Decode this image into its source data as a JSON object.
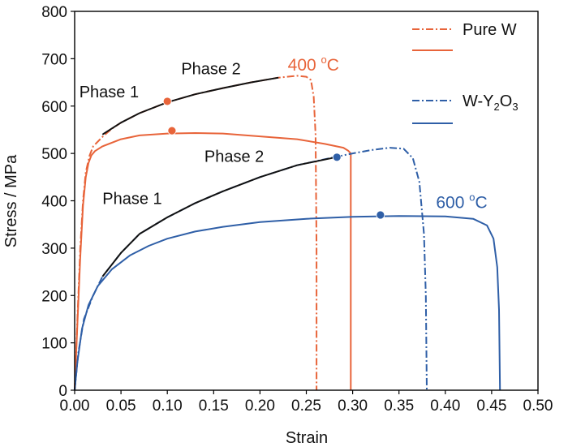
{
  "chart_data": {
    "type": "line",
    "xlabel": "Strain",
    "ylabel": "Stress / MPa",
    "xlim": [
      0.0,
      0.5
    ],
    "ylim": [
      0,
      800
    ],
    "x_ticks": [
      "0.00",
      "0.05",
      "0.10",
      "0.15",
      "0.20",
      "0.25",
      "0.30",
      "0.35",
      "0.40",
      "0.45",
      "0.50"
    ],
    "y_ticks": [
      "0",
      "100",
      "200",
      "300",
      "400",
      "500",
      "600",
      "700",
      "800"
    ],
    "grid": false,
    "legend_position": "top-right",
    "colors": {
      "pure_w": "#e8643a",
      "w_y2o3": "#2f5fa7",
      "phase_line": "#111111"
    },
    "legend": [
      {
        "label": "Pure W",
        "style": "dashdot",
        "color": "#e8643a"
      },
      {
        "label": "",
        "style": "solid",
        "color": "#e8643a"
      },
      {
        "label_main": "W-Y",
        "sub1": "2",
        "mid": "O",
        "sub2": "3",
        "style": "dashdot",
        "color": "#2f5fa7"
      },
      {
        "label": "",
        "style": "solid",
        "color": "#2f5fa7"
      }
    ],
    "series": [
      {
        "color": "#e8643a",
        "style": "dashdot",
        "points": [
          [
            0,
            0
          ],
          [
            0.003,
            150
          ],
          [
            0.006,
            300
          ],
          [
            0.009,
            400
          ],
          [
            0.012,
            460
          ],
          [
            0.016,
            495
          ],
          [
            0.02,
            515
          ],
          [
            0.03,
            535
          ],
          [
            0.04,
            552
          ],
          [
            0.05,
            565
          ],
          [
            0.07,
            585
          ],
          [
            0.1,
            608
          ],
          [
            0.13,
            625
          ],
          [
            0.16,
            638
          ],
          [
            0.19,
            650
          ],
          [
            0.22,
            660
          ],
          [
            0.24,
            664
          ],
          [
            0.25,
            662
          ],
          [
            0.255,
            655
          ],
          [
            0.258,
            620
          ],
          [
            0.26,
            540
          ],
          [
            0.261,
            300
          ],
          [
            0.261,
            0
          ]
        ]
      },
      {
        "color": "#e8643a",
        "style": "solid",
        "points": [
          [
            0,
            0
          ],
          [
            0.003,
            140
          ],
          [
            0.006,
            280
          ],
          [
            0.009,
            390
          ],
          [
            0.012,
            450
          ],
          [
            0.015,
            480
          ],
          [
            0.018,
            496
          ],
          [
            0.022,
            505
          ],
          [
            0.03,
            515
          ],
          [
            0.05,
            530
          ],
          [
            0.07,
            538
          ],
          [
            0.1,
            542
          ],
          [
            0.13,
            543
          ],
          [
            0.16,
            542
          ],
          [
            0.2,
            536
          ],
          [
            0.24,
            530
          ],
          [
            0.27,
            520
          ],
          [
            0.29,
            512
          ],
          [
            0.295,
            506
          ],
          [
            0.298,
            500
          ],
          [
            0.298,
            0
          ]
        ]
      },
      {
        "color": "#2f5fa7",
        "style": "dashdot",
        "points": [
          [
            0,
            0
          ],
          [
            0.004,
            80
          ],
          [
            0.01,
            150
          ],
          [
            0.02,
            200
          ],
          [
            0.03,
            240
          ],
          [
            0.05,
            290
          ],
          [
            0.07,
            330
          ],
          [
            0.1,
            365
          ],
          [
            0.13,
            395
          ],
          [
            0.16,
            420
          ],
          [
            0.2,
            450
          ],
          [
            0.24,
            475
          ],
          [
            0.28,
            492
          ],
          [
            0.3,
            500
          ],
          [
            0.32,
            507
          ],
          [
            0.34,
            512
          ],
          [
            0.355,
            510
          ],
          [
            0.365,
            490
          ],
          [
            0.372,
            440
          ],
          [
            0.377,
            330
          ],
          [
            0.379,
            200
          ],
          [
            0.38,
            0
          ]
        ]
      },
      {
        "color": "#2f5fa7",
        "style": "solid",
        "points": [
          [
            0,
            0
          ],
          [
            0.003,
            60
          ],
          [
            0.008,
            130
          ],
          [
            0.015,
            180
          ],
          [
            0.025,
            220
          ],
          [
            0.04,
            255
          ],
          [
            0.06,
            285
          ],
          [
            0.08,
            305
          ],
          [
            0.1,
            320
          ],
          [
            0.13,
            335
          ],
          [
            0.16,
            345
          ],
          [
            0.2,
            355
          ],
          [
            0.25,
            362
          ],
          [
            0.3,
            366
          ],
          [
            0.35,
            368
          ],
          [
            0.4,
            367
          ],
          [
            0.43,
            362
          ],
          [
            0.445,
            348
          ],
          [
            0.452,
            320
          ],
          [
            0.456,
            260
          ],
          [
            0.458,
            170
          ],
          [
            0.459,
            0
          ]
        ]
      },
      {
        "color": "#111111",
        "style": "solid",
        "points": [
          [
            0.03,
            540
          ],
          [
            0.05,
            565
          ],
          [
            0.07,
            585
          ],
          [
            0.1,
            608
          ],
          [
            0.13,
            625
          ],
          [
            0.16,
            638
          ],
          [
            0.19,
            650
          ],
          [
            0.22,
            660
          ]
        ]
      },
      {
        "color": "#111111",
        "style": "solid",
        "points": [
          [
            0.03,
            240
          ],
          [
            0.05,
            290
          ],
          [
            0.07,
            330
          ],
          [
            0.1,
            365
          ],
          [
            0.13,
            395
          ],
          [
            0.16,
            420
          ],
          [
            0.2,
            450
          ],
          [
            0.24,
            475
          ],
          [
            0.282,
            492
          ]
        ]
      }
    ],
    "markers": [
      {
        "x": 0.1,
        "y": 610,
        "color": "#e8643a"
      },
      {
        "x": 0.105,
        "y": 548,
        "color": "#e8643a"
      },
      {
        "x": 0.283,
        "y": 492,
        "color": "#2f5fa7"
      },
      {
        "x": 0.33,
        "y": 370,
        "color": "#2f5fa7"
      }
    ],
    "annotations": [
      {
        "text": "Phase 1",
        "x": 0.005,
        "y": 618,
        "color": "#111111"
      },
      {
        "text": "Phase 2",
        "x": 0.115,
        "y": 667,
        "color": "#111111"
      },
      {
        "text": "Phase 2",
        "x": 0.14,
        "y": 482,
        "color": "#111111"
      },
      {
        "text": "Phase 1",
        "x": 0.03,
        "y": 393,
        "color": "#111111"
      }
    ],
    "temp_labels": [
      {
        "num": "400 ",
        "sup": "o",
        "unit": "C",
        "x": 0.23,
        "y": 675,
        "color": "#e8643a"
      },
      {
        "num": "600 ",
        "sup": "o",
        "unit": "C",
        "x": 0.39,
        "y": 385,
        "color": "#2f5fa7"
      }
    ]
  }
}
